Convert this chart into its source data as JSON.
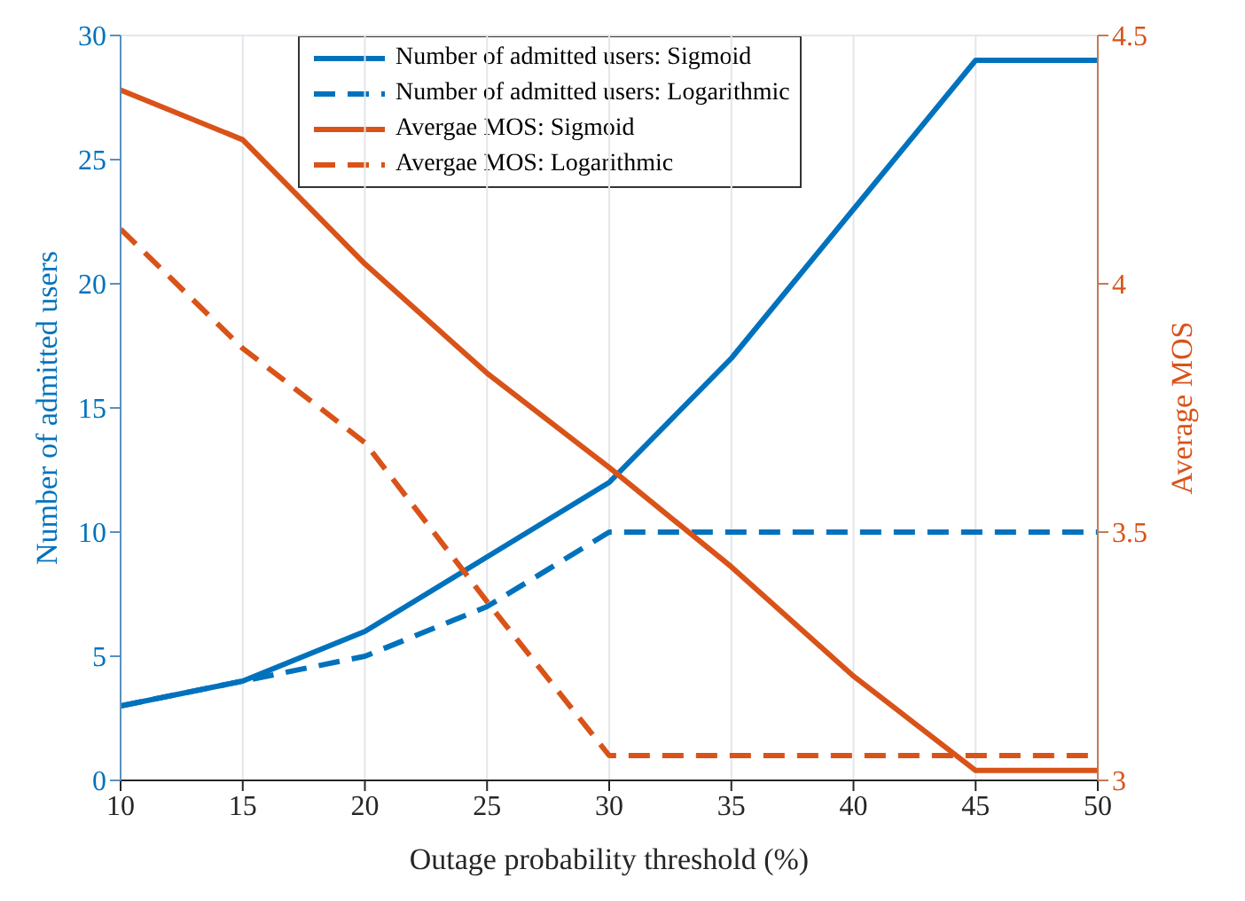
{
  "chart_data": {
    "type": "line",
    "xlabel": "Outage probability threshold (%)",
    "ylabel": "Number of admitted users",
    "y2label": "Average MOS",
    "x": [
      10,
      15,
      20,
      25,
      30,
      35,
      40,
      45,
      50
    ],
    "series": [
      {
        "name": "Number of admitted users: Sigmoid",
        "color": "#0072bd",
        "line_style": "solid",
        "values": [
          3,
          4,
          6,
          9,
          12,
          17,
          23,
          29,
          29
        ]
      },
      {
        "name": "Number of admitted users: Logarithmic",
        "color": "#0072bd",
        "line_style": "dashed",
        "values": [
          3,
          4,
          5,
          7,
          10,
          10,
          10,
          10,
          10
        ]
      },
      {
        "name": "Avergae MOS: Sigmoid",
        "color": "#d95319",
        "line_style": "solid",
        "axis": "y2",
        "values": [
          4.39,
          4.29,
          4.04,
          3.82,
          3.63,
          3.43,
          3.21,
          3.02,
          3.02
        ]
      },
      {
        "name": "Avergae MOS: Logarithmic",
        "color": "#d95319",
        "line_style": "dashed",
        "axis": "y2",
        "values": [
          4.11,
          3.87,
          3.68,
          3.36,
          3.05,
          3.05,
          3.05,
          3.05,
          3.05
        ]
      }
    ],
    "xlim": [
      10,
      50
    ],
    "xticks": [
      10,
      15,
      20,
      25,
      30,
      35,
      40,
      45,
      50
    ],
    "ylim": [
      0,
      30
    ],
    "yticks": [
      0,
      5,
      10,
      15,
      20,
      25,
      30
    ],
    "y2lim": [
      3,
      4.5
    ],
    "y2ticks": [
      3,
      3.5,
      4,
      4.5
    ],
    "grid": true,
    "legend": "top",
    "marker": "none"
  }
}
